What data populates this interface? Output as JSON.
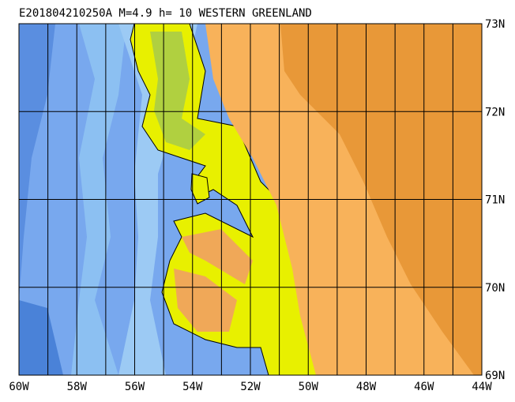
{
  "title": "E201804210250A M=4.9 h= 10 WESTERN GREENLAND",
  "map": {
    "lon_labels": [
      "60W",
      "58W",
      "56W",
      "54W",
      "52W",
      "50W",
      "48W",
      "46W",
      "44W"
    ],
    "lat_labels": [
      "73N",
      "72N",
      "71N",
      "70N",
      "69N"
    ]
  }
}
